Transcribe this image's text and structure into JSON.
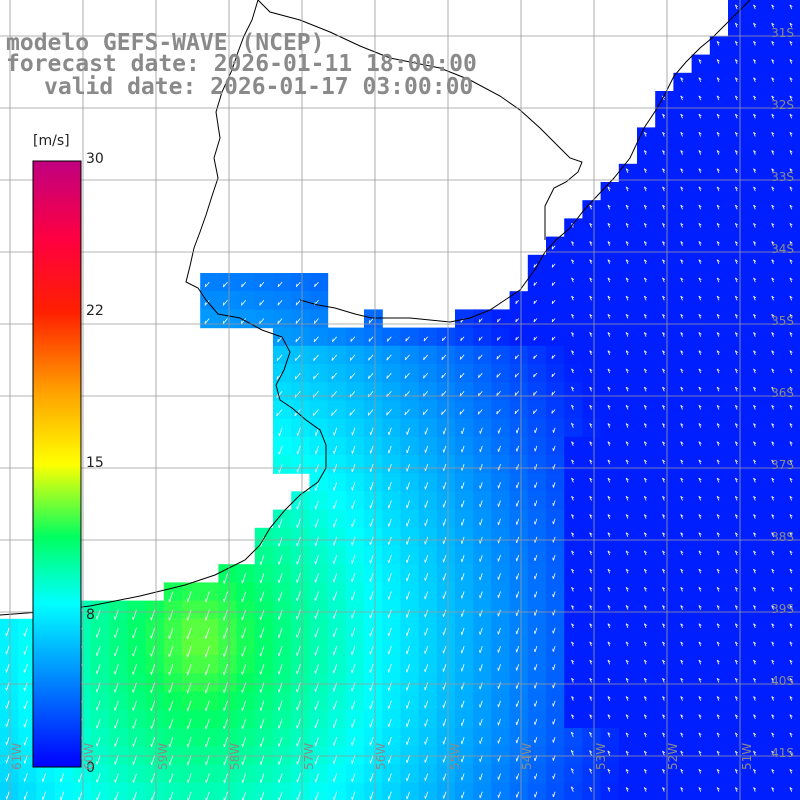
{
  "title": {
    "line1": "modelo GEFS-WAVE (NCEP)",
    "line2": "forecast date: 2026-01-11 18:00:00",
    "line3": "valid date: 2026-01-17 03:00:00"
  },
  "colorbar": {
    "unit": "[m/s]",
    "ticks": [
      "30",
      "22",
      "15",
      "8",
      "0"
    ],
    "tick_values": [
      30,
      22,
      15,
      8,
      0
    ],
    "min": 0,
    "max": 30
  },
  "grid": {
    "lat_labels": [
      "31S",
      "32S",
      "33S",
      "34S",
      "35S",
      "36S",
      "37S",
      "38S",
      "39S",
      "40S",
      "41S"
    ],
    "lon_labels": [
      "61W",
      "60W",
      "59W",
      "58W",
      "57W",
      "56W",
      "55W",
      "54W",
      "53W",
      "52W",
      "51W"
    ]
  },
  "colors": {
    "land": "#ffffff",
    "coast": "#000000",
    "grid": "#9a9a9a",
    "arrow": "#ffffff"
  }
}
